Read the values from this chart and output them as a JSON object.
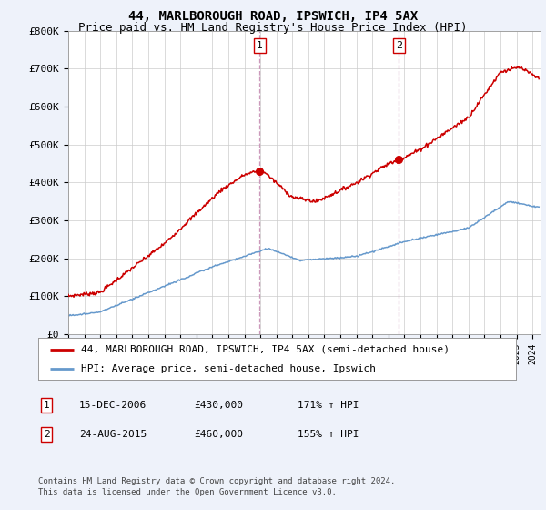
{
  "title1": "44, MARLBOROUGH ROAD, IPSWICH, IP4 5AX",
  "title2": "Price paid vs. HM Land Registry's House Price Index (HPI)",
  "ylabel_ticks": [
    "£0",
    "£100K",
    "£200K",
    "£300K",
    "£400K",
    "£500K",
    "£600K",
    "£700K",
    "£800K"
  ],
  "ytick_values": [
    0,
    100000,
    200000,
    300000,
    400000,
    500000,
    600000,
    700000,
    800000
  ],
  "ylim": [
    0,
    800000
  ],
  "xlim_start": 1995.0,
  "xlim_end": 2024.5,
  "hpi_color": "#6699cc",
  "price_color": "#cc0000",
  "background_color": "#eef2fa",
  "plot_bg_color": "#ffffff",
  "grid_color": "#cccccc",
  "vline_color": "#cc99bb",
  "sale1_x": 2006.958,
  "sale1_y": 430000,
  "sale2_x": 2015.646,
  "sale2_y": 460000,
  "legend_line1": "44, MARLBOROUGH ROAD, IPSWICH, IP4 5AX (semi-detached house)",
  "legend_line2": "HPI: Average price, semi-detached house, Ipswich",
  "table_row1": [
    "1",
    "15-DEC-2006",
    "£430,000",
    "171% ↑ HPI"
  ],
  "table_row2": [
    "2",
    "24-AUG-2015",
    "£460,000",
    "155% ↑ HPI"
  ],
  "footnote1": "Contains HM Land Registry data © Crown copyright and database right 2024.",
  "footnote2": "This data is licensed under the Open Government Licence v3.0.",
  "title_fontsize": 10,
  "subtitle_fontsize": 9,
  "tick_fontsize": 8,
  "legend_fontsize": 8,
  "table_fontsize": 8,
  "footnote_fontsize": 6.5
}
